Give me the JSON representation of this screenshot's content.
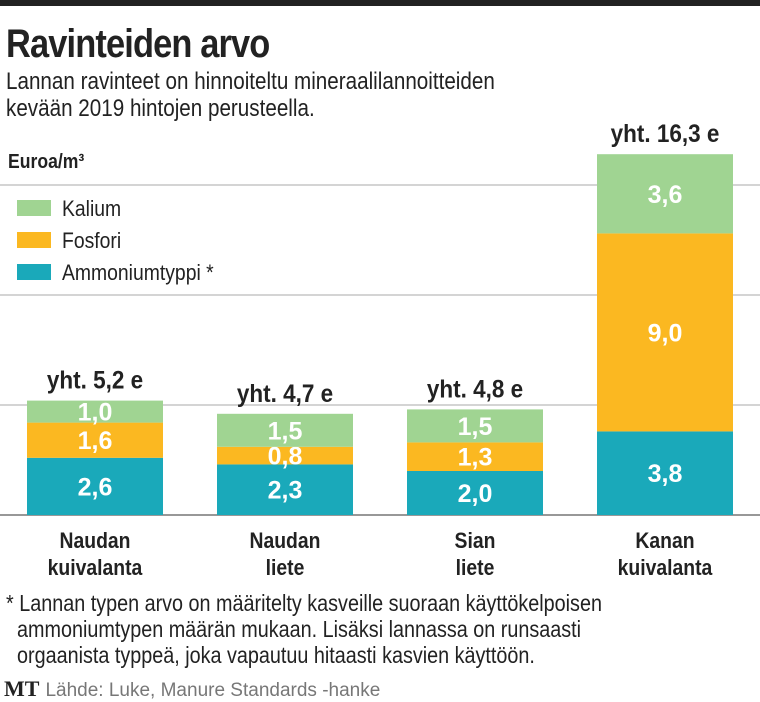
{
  "title": "Ravinteiden arvo",
  "subtitle_lines": [
    "Lannan ravinteet on hinnoiteltu mineraalilannoitteiden",
    "kevään 2019 hintojen perusteella."
  ],
  "footnote_lines": [
    "* Lannan typen arvo on määritelty kasveille suoraan käyttökelpoisen",
    "  ammoniumtypen määrän mukaan. Lisäksi lannassa on runsaasti",
    "  orgaanista typpeä, joka vapautuu hitaasti kasvien käyttöön."
  ],
  "source": {
    "logo": "MT",
    "text": "Lähde: Luke, Manure Standards -hanke"
  },
  "chart_data": {
    "type": "bar",
    "stacked": true,
    "ylabel": "Euroa/m³",
    "ylim": [
      0,
      16.3
    ],
    "grid": true,
    "gridlines": [
      0,
      5,
      10,
      15
    ],
    "legend_position": "top-left",
    "categories": [
      [
        "Naudan",
        "kuivalanta"
      ],
      [
        "Naudan",
        "liete"
      ],
      [
        "Sian",
        "liete"
      ],
      [
        "Kanan",
        "kuivalanta"
      ]
    ],
    "totals": [
      "yht. 5,2 e",
      "yht. 4,7 e",
      "yht. 4,8 e",
      "yht. 16,3 e"
    ],
    "series": [
      {
        "name": "Ammoniumtyppi *",
        "color": "#1aa9ba",
        "values": [
          2.6,
          2.3,
          2.0,
          3.8
        ],
        "labels": [
          "2,6",
          "2,3",
          "2,0",
          "3,8"
        ]
      },
      {
        "name": "Fosfori",
        "color": "#fbb821",
        "values": [
          1.6,
          0.8,
          1.3,
          9.0
        ],
        "labels": [
          "1,6",
          "0,8",
          "1,3",
          "9,0"
        ]
      },
      {
        "name": "Kalium",
        "color": "#a0d492",
        "values": [
          1.0,
          1.5,
          1.5,
          3.6
        ],
        "labels": [
          "1,0",
          "1,5",
          "1,5",
          "3,6"
        ]
      }
    ],
    "legend_order": [
      "Kalium",
      "Fosfori",
      "Ammoniumtyppi *"
    ]
  }
}
